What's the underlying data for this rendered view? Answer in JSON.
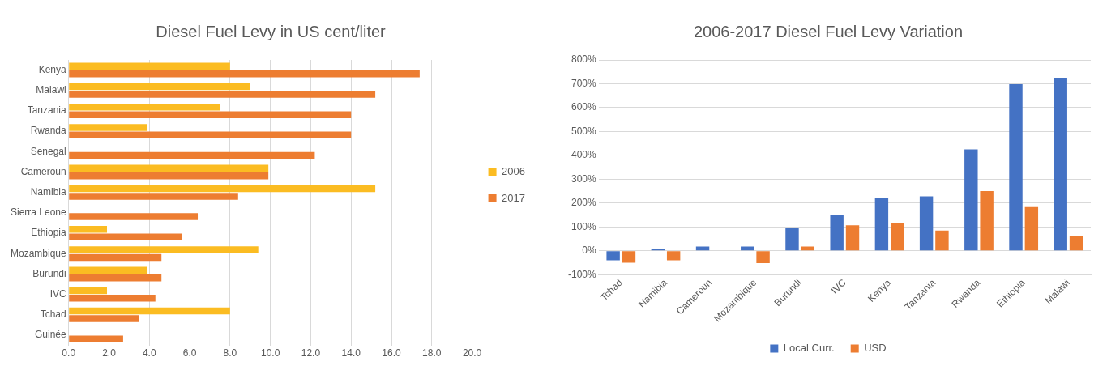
{
  "chart_data": [
    {
      "type": "bar",
      "orientation": "horizontal",
      "title": "Diesel Fuel Levy in US cent/liter",
      "categories": [
        "Kenya",
        "Malawi",
        "Tanzania",
        "Rwanda",
        "Senegal",
        "Cameroun",
        "Namibia",
        "Sierra Leone",
        "Ethiopia",
        "Mozambique",
        "Burundi",
        "IVC",
        "Tchad",
        "Guinée"
      ],
      "series": [
        {
          "name": "2006",
          "color": "#fbbc22",
          "values": [
            8.0,
            9.0,
            7.5,
            3.9,
            null,
            9.9,
            15.2,
            null,
            1.9,
            9.4,
            3.9,
            1.9,
            8.0,
            null
          ]
        },
        {
          "name": "2017",
          "color": "#ed7d31",
          "values": [
            17.4,
            15.2,
            14.0,
            14.0,
            12.2,
            9.9,
            8.4,
            6.4,
            5.6,
            4.6,
            4.6,
            4.3,
            3.5,
            2.7
          ]
        }
      ],
      "xlim": [
        0,
        20
      ],
      "xticks": [
        {
          "value": 0,
          "label": "0.0"
        },
        {
          "value": 2,
          "label": "2.0"
        },
        {
          "value": 4,
          "label": "4.0"
        },
        {
          "value": 6,
          "label": "6.0"
        },
        {
          "value": 8,
          "label": "8.0"
        },
        {
          "value": 10,
          "label": "10.0"
        },
        {
          "value": 12,
          "label": "12.0"
        },
        {
          "value": 14,
          "label": "14.0"
        },
        {
          "value": 16,
          "label": "16.0"
        },
        {
          "value": 18,
          "label": "18.0"
        },
        {
          "value": 20,
          "label": "20.0"
        }
      ],
      "grid": "x",
      "legend": "right"
    },
    {
      "type": "bar",
      "title": "2006-2017 Diesel Fuel Levy Variation",
      "categories": [
        "Tchad",
        "Namibia",
        "Cameroun",
        "Mozambique",
        "Burundi",
        "IVC",
        "Kenya",
        "Tanzania",
        "Rwanda",
        "Ethiopia",
        "Malawi"
      ],
      "series": [
        {
          "name": "Local Curr.",
          "color": "#4472c4",
          "values": [
            -40,
            8,
            18,
            18,
            97,
            150,
            222,
            228,
            425,
            698,
            725
          ]
        },
        {
          "name": "USD",
          "color": "#ed7d31",
          "values": [
            -50,
            -40,
            null,
            -52,
            18,
            107,
            118,
            85,
            250,
            183,
            63
          ]
        }
      ],
      "ylim": [
        -100,
        800
      ],
      "yticks": [
        {
          "value": -100,
          "label": "-100%"
        },
        {
          "value": 0,
          "label": "0%"
        },
        {
          "value": 100,
          "label": "100%"
        },
        {
          "value": 200,
          "label": "200%"
        },
        {
          "value": 300,
          "label": "300%"
        },
        {
          "value": 400,
          "label": "400%"
        },
        {
          "value": 500,
          "label": "500%"
        },
        {
          "value": 600,
          "label": "600%"
        },
        {
          "value": 700,
          "label": "700%"
        },
        {
          "value": 800,
          "label": "800%"
        }
      ],
      "grid": "y",
      "legend": "bottom"
    }
  ]
}
